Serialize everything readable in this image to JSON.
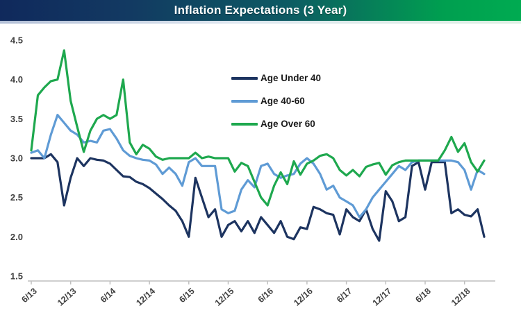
{
  "title": "Inflation Expectations (3 Year)",
  "colors": {
    "titlebar_left": "#10295c",
    "titlebar_right": "#00ab51",
    "axis_line": "#bfbfbf",
    "tick_label": "#404040",
    "legend_text": "#1a1a1a",
    "background": "#ffffff"
  },
  "chart_data": {
    "type": "line",
    "title": "Inflation Expectations (3 Year)",
    "x_start": "6/13",
    "x_frequency": "monthly",
    "x_tick_labels": [
      "6/13",
      "12/13",
      "6/14",
      "12/14",
      "6/15",
      "12/15",
      "6/16",
      "12/16",
      "6/17",
      "12/17",
      "6/18",
      "12/18"
    ],
    "x_tick_every_months": 6,
    "ylim": [
      1.5,
      4.5
    ],
    "y_ticks": [
      4.5,
      4.0,
      3.5,
      3.0,
      2.5,
      2.0,
      1.5
    ],
    "grid": false,
    "legend_position": "upper-center",
    "series": [
      {
        "name": "Age Under 40",
        "color": "#1d3460",
        "values": [
          3.0,
          3.0,
          3.0,
          3.05,
          2.95,
          2.4,
          2.75,
          3.0,
          2.9,
          3.0,
          2.98,
          2.97,
          2.93,
          2.85,
          2.77,
          2.76,
          2.7,
          2.67,
          2.62,
          2.55,
          2.48,
          2.4,
          2.33,
          2.2,
          2.0,
          2.75,
          2.5,
          2.25,
          2.35,
          2.0,
          2.15,
          2.2,
          2.07,
          2.2,
          2.05,
          2.25,
          2.15,
          2.05,
          2.2,
          2.0,
          1.97,
          2.12,
          2.1,
          2.38,
          2.35,
          2.3,
          2.28,
          2.03,
          2.35,
          2.25,
          2.2,
          2.35,
          2.1,
          1.95,
          2.58,
          2.45,
          2.2,
          2.25,
          2.9,
          2.95,
          2.6,
          2.95,
          2.95,
          2.95,
          2.3,
          2.35,
          2.28,
          2.26,
          2.35,
          2.0
        ]
      },
      {
        "name": "Age 40-60",
        "color": "#5f9bd5",
        "values": [
          3.07,
          3.1,
          3.0,
          3.3,
          3.55,
          3.45,
          3.35,
          3.3,
          3.2,
          3.22,
          3.2,
          3.35,
          3.37,
          3.25,
          3.1,
          3.03,
          3.0,
          2.98,
          2.97,
          2.92,
          2.8,
          2.88,
          2.8,
          2.65,
          2.95,
          3.0,
          2.9,
          2.9,
          2.9,
          2.35,
          2.3,
          2.33,
          2.6,
          2.72,
          2.63,
          2.9,
          2.93,
          2.8,
          2.75,
          2.78,
          2.8,
          2.93,
          3.0,
          2.93,
          2.8,
          2.6,
          2.65,
          2.5,
          2.45,
          2.4,
          2.25,
          2.35,
          2.5,
          2.6,
          2.7,
          2.8,
          2.9,
          2.85,
          2.95,
          2.97,
          2.97,
          2.97,
          2.97,
          2.97,
          2.97,
          2.95,
          2.85,
          2.6,
          2.85,
          2.8
        ]
      },
      {
        "name": "Age Over 60",
        "color": "#1ea84e",
        "values": [
          3.1,
          3.8,
          3.9,
          3.98,
          4.0,
          4.37,
          3.73,
          3.4,
          3.08,
          3.35,
          3.5,
          3.55,
          3.5,
          3.55,
          4.0,
          3.2,
          3.05,
          3.17,
          3.12,
          3.02,
          2.98,
          3.0,
          3.0,
          3.0,
          3.0,
          3.07,
          3.0,
          3.02,
          3.0,
          3.0,
          3.0,
          2.83,
          2.94,
          2.9,
          2.7,
          2.5,
          2.4,
          2.65,
          2.82,
          2.67,
          2.96,
          2.79,
          2.93,
          2.97,
          3.03,
          3.05,
          3.0,
          2.85,
          2.78,
          2.85,
          2.77,
          2.89,
          2.92,
          2.94,
          2.79,
          2.91,
          2.95,
          2.97,
          2.97,
          2.97,
          2.97,
          2.97,
          2.97,
          3.1,
          3.27,
          3.08,
          3.19,
          2.95,
          2.83,
          2.97
        ]
      }
    ]
  }
}
